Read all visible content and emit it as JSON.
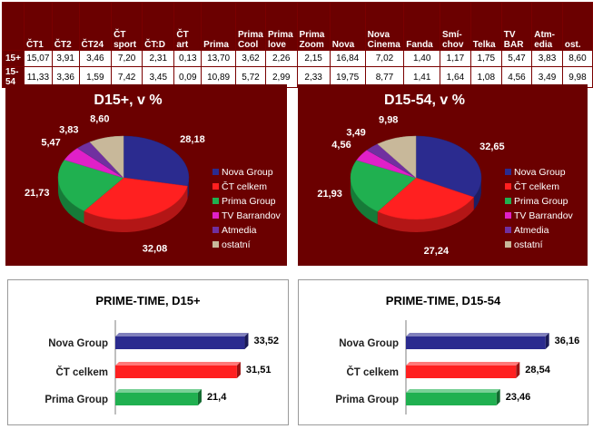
{
  "table": {
    "columns": [
      "ČT1",
      "ČT2",
      "ČT24",
      "ČT\nsport",
      "ČT:D",
      "ČT\nart",
      "Prima",
      "Prima\nCool",
      "Prima\nlove",
      "Prima\nZoom",
      "Nova",
      "Nova\nCinema",
      "Fanda",
      "Smí-\nchov",
      "Telka",
      "TV\nBAR",
      "Atm-\nedia",
      "ost."
    ],
    "rows": [
      {
        "label": "15+",
        "values": [
          "15,07",
          "3,91",
          "3,46",
          "7,20",
          "2,31",
          "0,13",
          "13,70",
          "3,62",
          "2,26",
          "2,15",
          "16,84",
          "7,02",
          "1,40",
          "1,17",
          "1,75",
          "5,47",
          "3,83",
          "8,60"
        ]
      },
      {
        "label": "15-54",
        "values": [
          "11,33",
          "3,36",
          "1,59",
          "7,42",
          "3,45",
          "0,09",
          "10,89",
          "5,72",
          "2,99",
          "2,33",
          "19,75",
          "8,77",
          "1,41",
          "1,64",
          "1,08",
          "4,56",
          "3,49",
          "9,98"
        ]
      }
    ]
  },
  "chart_data": [
    {
      "type": "pie",
      "title": "D15+, v %",
      "categories": [
        "Nova Group",
        "ČT celkem",
        "Prima Group",
        "TV Barrandov",
        "Atmedia",
        "ostatní"
      ],
      "values": [
        28.18,
        32.08,
        21.73,
        5.47,
        3.83,
        8.6
      ],
      "value_labels": [
        "28,18",
        "32,08",
        "21,73",
        "5,47",
        "3,83",
        "8,60"
      ],
      "colors": [
        "#2b2b8f",
        "#ff2020",
        "#20b050",
        "#e020c8",
        "#7030a0",
        "#c8b89a"
      ],
      "legend": "right"
    },
    {
      "type": "pie",
      "title": "D15-54, v %",
      "categories": [
        "Nova Group",
        "ČT celkem",
        "Prima Group",
        "TV Barrandov",
        "Atmedia",
        "ostatní"
      ],
      "values": [
        32.65,
        27.24,
        21.93,
        4.56,
        3.49,
        9.98
      ],
      "value_labels": [
        "32,65",
        "27,24",
        "21,93",
        "4,56",
        "3,49",
        "9,98"
      ],
      "colors": [
        "#2b2b8f",
        "#ff2020",
        "#20b050",
        "#e020c8",
        "#7030a0",
        "#c8b89a"
      ],
      "legend": "right"
    },
    {
      "type": "bar",
      "orientation": "horizontal",
      "title": "PRIME-TIME, D15+",
      "categories": [
        "Nova Group",
        "ČT celkem",
        "Prima Group"
      ],
      "values": [
        33.52,
        31.51,
        21.4
      ],
      "value_labels": [
        "33,52",
        "31,51",
        "21,4"
      ],
      "colors": [
        "#2b2b8f",
        "#ff2020",
        "#20b050"
      ],
      "xlim": [
        0,
        40
      ]
    },
    {
      "type": "bar",
      "orientation": "horizontal",
      "title": "PRIME-TIME, D15-54",
      "categories": [
        "Nova Group",
        "ČT celkem",
        "Prima Group"
      ],
      "values": [
        36.16,
        28.54,
        23.46
      ],
      "value_labels": [
        "36,16",
        "28,54",
        "23,46"
      ],
      "colors": [
        "#2b2b8f",
        "#ff2020",
        "#20b050"
      ],
      "xlim": [
        0,
        40
      ]
    }
  ]
}
